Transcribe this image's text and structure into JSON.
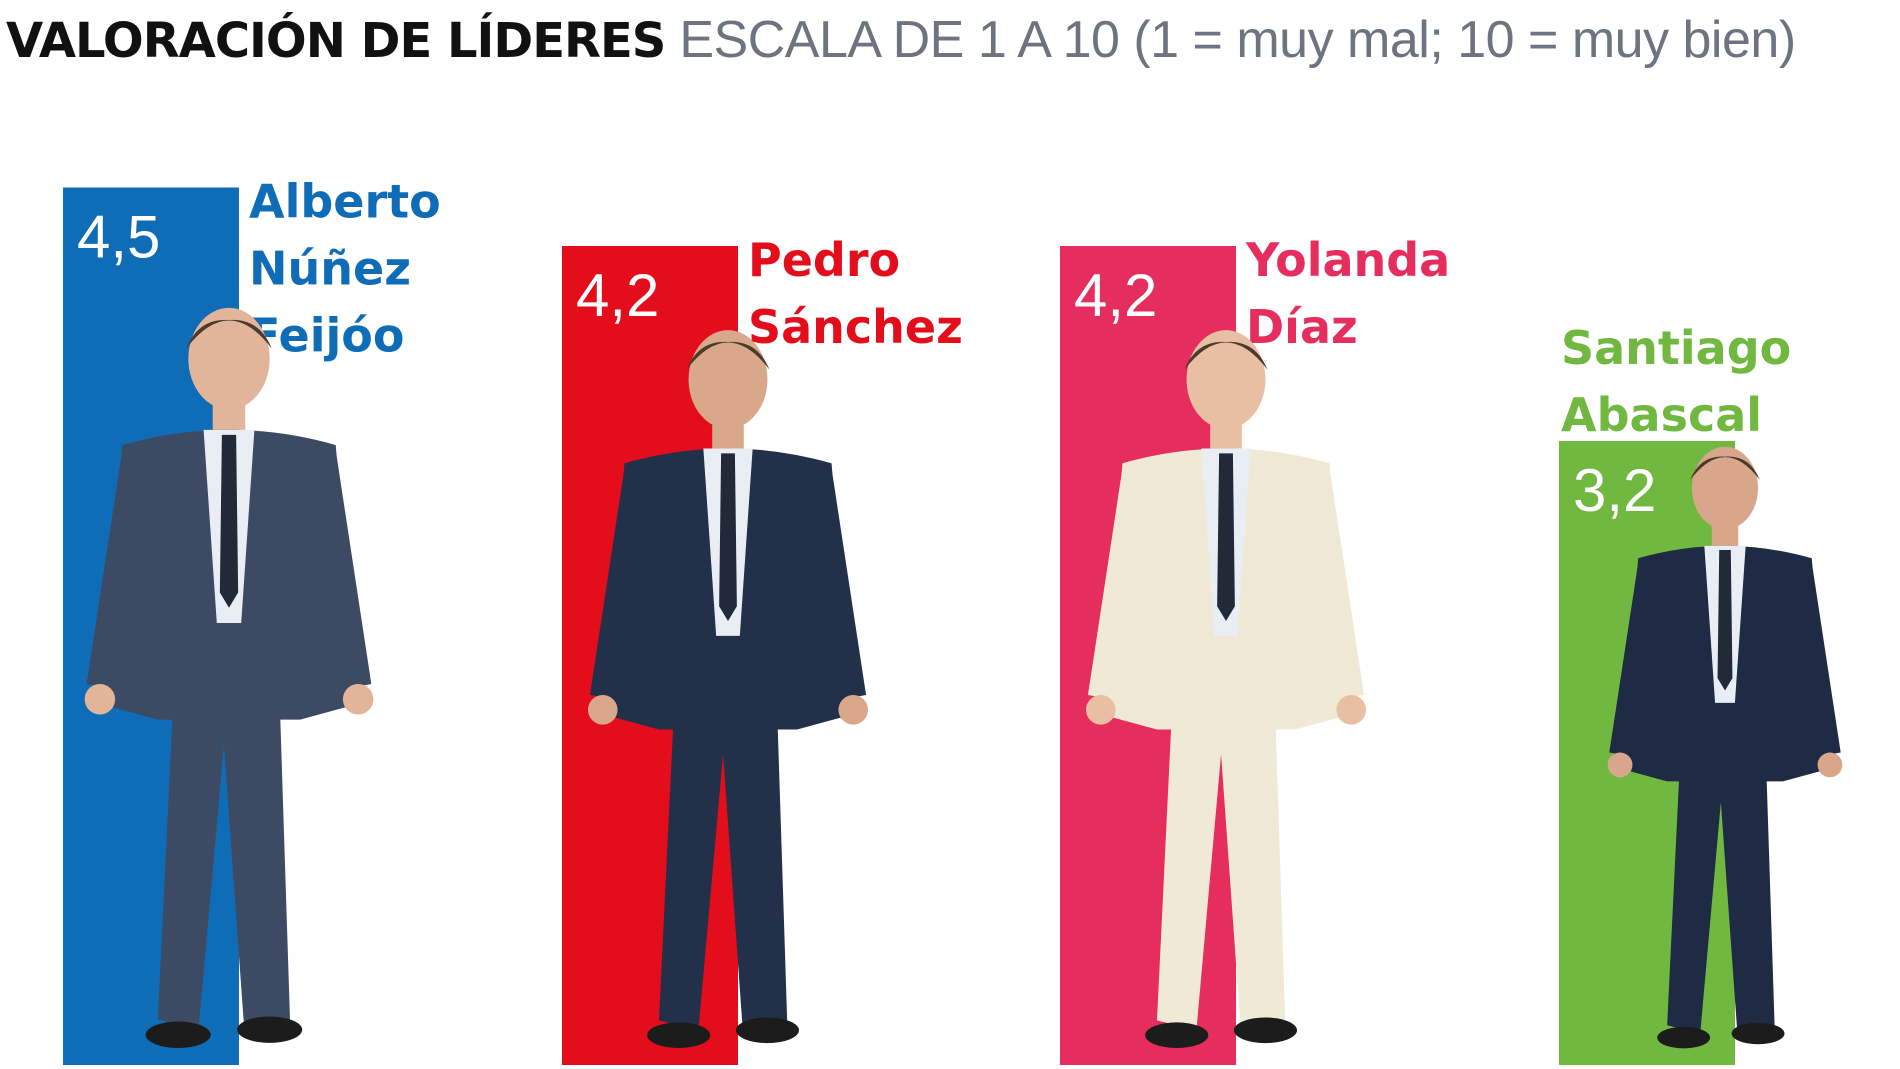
{
  "header": {
    "title": "VALORACIÓN DE LÍDERES",
    "subtitle": "ESCALA DE 1 A 10 (1 = muy mal; 10 = muy bien)"
  },
  "chart_data": {
    "type": "bar",
    "title": "VALORACIÓN DE LÍDERES",
    "subtitle": "ESCALA DE 1 A 10 (1 = muy mal; 10 = muy bien)",
    "categories": [
      "Alberto Núñez Feijóo",
      "Pedro Sánchez",
      "Yolanda Díaz",
      "Santiago Abascal"
    ],
    "name_lines": [
      [
        "Alberto",
        "Núñez",
        "Feijóo"
      ],
      [
        "Pedro",
        "Sánchez"
      ],
      [
        "Yolanda",
        "Díaz"
      ],
      [
        "Santiago",
        "Abascal"
      ]
    ],
    "values": [
      4.5,
      4.2,
      4.2,
      3.2
    ],
    "value_labels": [
      "4,5",
      "4,2",
      "4,2",
      "3,2"
    ],
    "colors": [
      "#0f6cb6",
      "#e30d1b",
      "#e52d5e",
      "#71b840"
    ],
    "scale": [
      1,
      10
    ],
    "xlabel": "",
    "ylabel": "",
    "grid": false,
    "legend": "none",
    "photo_icons": [
      "person-walking-icon",
      "person-walking-icon",
      "person-walking-icon",
      "person-walking-icon"
    ]
  }
}
